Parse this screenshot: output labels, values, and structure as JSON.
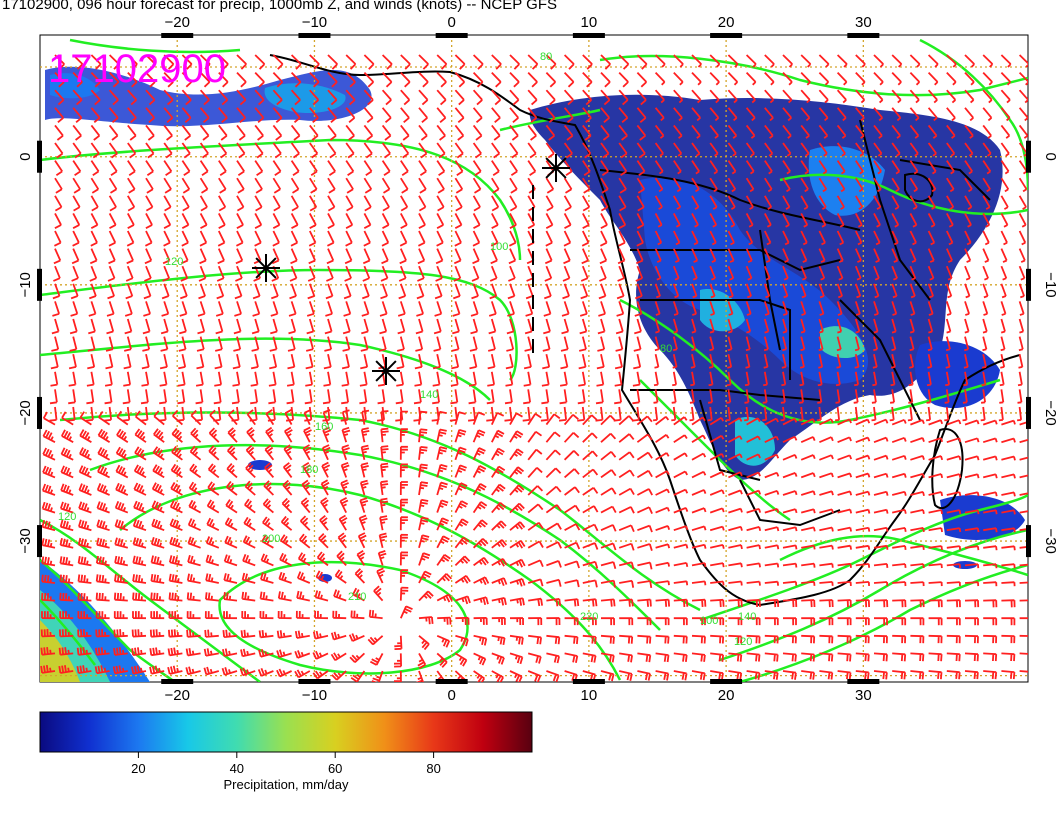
{
  "title": "17102900, 096 hour forecast for precip, 1000mb Z, and winds (knots) -- NCEP GFS",
  "stamp": "17102900",
  "colors": {
    "stamp": "#ff00ff",
    "contour": "#22ee22",
    "wind_barb": "#ff2020",
    "coastline": "#000000",
    "grid": "#d4a52a"
  },
  "axes": {
    "x_ticks": [
      "−20",
      "−10",
      "0",
      "10",
      "20",
      "30"
    ],
    "y_ticks": [
      "0",
      "−10",
      "−20",
      "−30"
    ]
  },
  "contour_labels": [
    "80",
    "100",
    "120",
    "140",
    "160",
    "180",
    "200",
    "210",
    "220",
    "140",
    "120",
    "100",
    "80",
    "120"
  ],
  "colorbar": {
    "label": "Precipitation, mm/day",
    "ticks": [
      "20",
      "40",
      "60",
      "80"
    ],
    "colors": [
      "#0a0a80",
      "#1030d0",
      "#1c78f0",
      "#18c8e8",
      "#40dcb0",
      "#9ae050",
      "#d8d020",
      "#f09018",
      "#e83818",
      "#c00010",
      "#580010"
    ]
  },
  "symbols": [
    "high-center-icon",
    "high-center-icon",
    "high-center-icon"
  ]
}
